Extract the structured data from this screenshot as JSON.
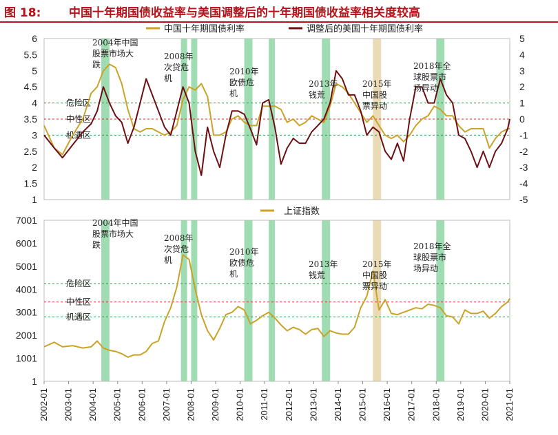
{
  "header": {
    "figure_number": "图 18:",
    "title": "中国十年期国债收益率与美国调整后的十年期国债收益率相关度较高"
  },
  "colors": {
    "gold": "#c9a227",
    "maroon": "#6b0f12",
    "green_band": "#8ed6a3",
    "tan_band": "#e6d3a8",
    "green_line": "#2e9b4a",
    "red_line": "#d9302b"
  },
  "chart_data": [
    {
      "type": "line",
      "legend": [
        "中国十年期国债利率",
        "调整后的美国十年期国债利率"
      ],
      "yleft": {
        "ticks": [
          "6",
          "5.5",
          "5",
          "4.5",
          "4",
          "3.5",
          "3",
          "2.5",
          "2",
          "1.5",
          "1"
        ],
        "lim": [
          1,
          6
        ]
      },
      "yright": {
        "ticks": [
          "5",
          "4",
          "3",
          "2",
          "1",
          "0",
          "-1",
          "-2",
          "-3",
          "-4",
          "-5"
        ],
        "lim": [
          -5,
          5
        ]
      },
      "reference_lines": [
        {
          "label": "危险区",
          "value": 4.0,
          "color": "green"
        },
        {
          "label": "中性区",
          "value": 3.5,
          "color": "red"
        },
        {
          "label": "机遇区",
          "value": 3.0,
          "color": "green"
        }
      ],
      "series": [
        {
          "name": "中国十年期国债利率",
          "x": [
            "2002-01",
            "2002-06",
            "2002-10",
            "2003-03",
            "2003-08",
            "2003-12",
            "2004-03",
            "2004-06",
            "2004-09",
            "2004-12",
            "2005-03",
            "2005-06",
            "2005-09",
            "2005-12",
            "2006-03",
            "2006-06",
            "2006-09",
            "2006-12",
            "2007-03",
            "2007-06",
            "2007-09",
            "2007-12",
            "2008-03",
            "2008-06",
            "2008-09",
            "2008-12",
            "2009-03",
            "2009-06",
            "2009-09",
            "2009-12",
            "2010-03",
            "2010-06",
            "2010-09",
            "2010-12",
            "2011-03",
            "2011-06",
            "2011-09",
            "2011-12",
            "2012-03",
            "2012-06",
            "2012-09",
            "2012-12",
            "2013-03",
            "2013-06",
            "2013-09",
            "2013-12",
            "2014-03",
            "2014-06",
            "2014-09",
            "2014-12",
            "2015-03",
            "2015-06",
            "2015-09",
            "2015-12",
            "2016-03",
            "2016-06",
            "2016-09",
            "2016-12",
            "2017-03",
            "2017-06",
            "2017-09",
            "2017-12",
            "2018-03",
            "2018-06",
            "2018-09",
            "2018-12",
            "2019-03",
            "2019-06",
            "2019-09",
            "2019-12",
            "2020-03",
            "2020-06",
            "2020-09",
            "2020-12",
            "2021-01"
          ],
          "values": [
            3.3,
            2.6,
            2.4,
            3.0,
            3.5,
            4.3,
            4.5,
            5.0,
            5.2,
            5.1,
            4.6,
            3.8,
            3.2,
            3.1,
            3.2,
            3.2,
            3.1,
            3.0,
            3.1,
            3.3,
            4.1,
            4.5,
            4.4,
            4.6,
            4.2,
            3.0,
            3.0,
            3.1,
            3.5,
            3.6,
            3.4,
            3.3,
            3.3,
            3.9,
            3.9,
            3.9,
            3.8,
            3.4,
            3.5,
            3.3,
            3.4,
            3.6,
            3.5,
            3.4,
            3.9,
            4.6,
            4.5,
            4.3,
            4.0,
            3.7,
            3.4,
            3.6,
            3.3,
            3.0,
            2.9,
            3.0,
            2.8,
            3.0,
            3.3,
            3.5,
            3.6,
            3.9,
            3.8,
            3.6,
            3.6,
            3.3,
            3.1,
            3.2,
            3.2,
            3.2,
            2.6,
            2.9,
            3.1,
            3.2,
            3.2
          ]
        },
        {
          "name": "调整后的美国十年期国债利率",
          "x": [
            "2002-01",
            "2002-06",
            "2002-10",
            "2003-03",
            "2003-08",
            "2003-12",
            "2004-03",
            "2004-06",
            "2004-09",
            "2004-12",
            "2005-03",
            "2005-06",
            "2005-09",
            "2005-12",
            "2006-03",
            "2006-06",
            "2006-09",
            "2006-12",
            "2007-03",
            "2007-06",
            "2007-09",
            "2007-12",
            "2008-03",
            "2008-06",
            "2008-09",
            "2008-12",
            "2009-03",
            "2009-06",
            "2009-09",
            "2009-12",
            "2010-03",
            "2010-06",
            "2010-09",
            "2010-12",
            "2011-03",
            "2011-06",
            "2011-09",
            "2011-12",
            "2012-03",
            "2012-06",
            "2012-09",
            "2012-12",
            "2013-03",
            "2013-06",
            "2013-09",
            "2013-12",
            "2014-03",
            "2014-06",
            "2014-09",
            "2014-12",
            "2015-03",
            "2015-06",
            "2015-09",
            "2015-12",
            "2016-03",
            "2016-06",
            "2016-09",
            "2016-12",
            "2017-03",
            "2017-06",
            "2017-09",
            "2017-12",
            "2018-03",
            "2018-06",
            "2018-09",
            "2018-12",
            "2019-03",
            "2019-06",
            "2019-09",
            "2019-12",
            "2020-03",
            "2020-06",
            "2020-09",
            "2020-12",
            "2021-01"
          ],
          "values": [
            -1.0,
            -1.8,
            -2.4,
            -1.6,
            -0.8,
            -0.3,
            0.5,
            2.0,
            1.0,
            0.2,
            -0.2,
            -1.5,
            -0.5,
            1.0,
            2.5,
            1.5,
            0.5,
            -0.5,
            -1.0,
            0.5,
            2.0,
            1.0,
            -2.0,
            -3.5,
            -0.5,
            -2.0,
            -3.0,
            -1.0,
            0.5,
            0.5,
            0.3,
            -0.6,
            -1.6,
            1.0,
            1.2,
            -0.5,
            -2.8,
            -1.8,
            -1.2,
            -1.5,
            -1.5,
            -0.8,
            -0.4,
            0.0,
            1.0,
            3.0,
            2.5,
            1.5,
            1.5,
            0.5,
            -1.0,
            -0.5,
            -0.8,
            -2.0,
            -2.5,
            -1.5,
            -2.6,
            0.0,
            2.0,
            2.0,
            1.0,
            1.0,
            2.5,
            1.5,
            1.0,
            -1.0,
            -1.2,
            -2.0,
            -3.0,
            -2.0,
            -3.0,
            -2.0,
            -1.5,
            -0.6,
            0.0
          ]
        }
      ]
    },
    {
      "type": "line",
      "legend": [
        "上证指数"
      ],
      "yleft": {
        "ticks": [
          "7001",
          "6001",
          "5001",
          "4001",
          "3001",
          "2001",
          "1001",
          "1"
        ],
        "lim": [
          1,
          7001
        ]
      },
      "xticks": [
        "2002-01",
        "2003-01",
        "2004-01",
        "2005-01",
        "2006-01",
        "2007-01",
        "2008-01",
        "2009-01",
        "2010-01",
        "2011-01",
        "2012-01",
        "2013-01",
        "2014-01",
        "2015-01",
        "2016-01",
        "2017-01",
        "2018-01",
        "2019-01",
        "2020-01",
        "2021-01"
      ],
      "reference_lines": [
        {
          "label": "危险区",
          "value": 4250,
          "color": "green"
        },
        {
          "label": "中性区",
          "value": 3450,
          "color": "red"
        },
        {
          "label": "机遇区",
          "value": 2800,
          "color": "green"
        }
      ],
      "series": [
        {
          "name": "上证指数",
          "x": [
            "2002-01",
            "2002-06",
            "2002-10",
            "2003-03",
            "2003-08",
            "2003-12",
            "2004-03",
            "2004-06",
            "2004-09",
            "2004-12",
            "2005-03",
            "2005-06",
            "2005-09",
            "2005-12",
            "2006-03",
            "2006-06",
            "2006-09",
            "2006-12",
            "2007-03",
            "2007-06",
            "2007-09",
            "2007-12",
            "2008-03",
            "2008-06",
            "2008-09",
            "2008-12",
            "2009-03",
            "2009-06",
            "2009-09",
            "2009-12",
            "2010-03",
            "2010-06",
            "2010-09",
            "2010-12",
            "2011-03",
            "2011-06",
            "2011-09",
            "2011-12",
            "2012-03",
            "2012-06",
            "2012-09",
            "2012-12",
            "2013-03",
            "2013-06",
            "2013-09",
            "2013-12",
            "2014-03",
            "2014-06",
            "2014-09",
            "2014-12",
            "2015-03",
            "2015-06",
            "2015-09",
            "2015-12",
            "2016-03",
            "2016-06",
            "2016-09",
            "2016-12",
            "2017-03",
            "2017-06",
            "2017-09",
            "2017-12",
            "2018-03",
            "2018-06",
            "2018-09",
            "2018-12",
            "2019-03",
            "2019-06",
            "2019-09",
            "2019-12",
            "2020-03",
            "2020-06",
            "2020-09",
            "2020-12",
            "2021-01"
          ],
          "values": [
            1500,
            1700,
            1500,
            1550,
            1450,
            1500,
            1750,
            1450,
            1350,
            1300,
            1200,
            1050,
            1150,
            1150,
            1300,
            1650,
            1750,
            2600,
            3200,
            4100,
            5500,
            5300,
            4000,
            2900,
            2200,
            1800,
            2300,
            2900,
            3000,
            3250,
            3100,
            2500,
            2650,
            2850,
            3000,
            2750,
            2450,
            2200,
            2350,
            2250,
            2050,
            2250,
            2300,
            1950,
            2200,
            2100,
            2050,
            2050,
            2350,
            3200,
            3700,
            4800,
            3100,
            3550,
            2950,
            2900,
            3000,
            3100,
            3200,
            3150,
            3350,
            3300,
            3200,
            2850,
            2800,
            2500,
            3100,
            2950,
            2950,
            3050,
            2750,
            2950,
            3250,
            3450,
            3600
          ]
        }
      ]
    }
  ],
  "annotations_top": [
    {
      "id": "a2004",
      "lines": [
        "2004年中国",
        "股票市场大",
        "跌"
      ]
    },
    {
      "id": "a2008",
      "lines": [
        "2008年",
        "次贷危",
        "机"
      ]
    },
    {
      "id": "a2010",
      "lines": [
        "2010年",
        "欧债危",
        "机"
      ]
    },
    {
      "id": "a2013",
      "lines": [
        "2013年",
        "钱荒"
      ]
    },
    {
      "id": "a2015",
      "lines": [
        "2015年",
        "中国股",
        "票异动"
      ]
    },
    {
      "id": "a2018",
      "lines": [
        "2018年全",
        "球股票市",
        "场异动"
      ]
    }
  ],
  "annotations_bottom": [
    {
      "id": "b2004",
      "lines": [
        "2004年中国",
        "股票市场大",
        "跌"
      ]
    },
    {
      "id": "b2008",
      "lines": [
        "2008年",
        "次贷危",
        "机"
      ]
    },
    {
      "id": "b2010",
      "lines": [
        "2010年",
        "欧债危",
        "机"
      ]
    },
    {
      "id": "b2013",
      "lines": [
        "2013年",
        "钱荒"
      ]
    },
    {
      "id": "b2015",
      "lines": [
        "2015年",
        "中国股",
        "票异动"
      ]
    },
    {
      "id": "b2018",
      "lines": [
        "2018年全",
        "球股票市",
        "场异动"
      ]
    }
  ],
  "highlight_bands": [
    {
      "start": "2004-05",
      "end": "2004-09",
      "color": "green"
    },
    {
      "start": "2007-08",
      "end": "2007-11",
      "color": "green"
    },
    {
      "start": "2008-01",
      "end": "2008-04",
      "color": "green"
    },
    {
      "start": "2010-03",
      "end": "2010-07",
      "color": "green"
    },
    {
      "start": "2011-03",
      "end": "2011-06",
      "color": "green"
    },
    {
      "start": "2013-05",
      "end": "2013-09",
      "color": "green"
    },
    {
      "start": "2015-06",
      "end": "2015-10",
      "color": "tan"
    },
    {
      "start": "2018-01",
      "end": "2018-05",
      "color": "green"
    }
  ]
}
